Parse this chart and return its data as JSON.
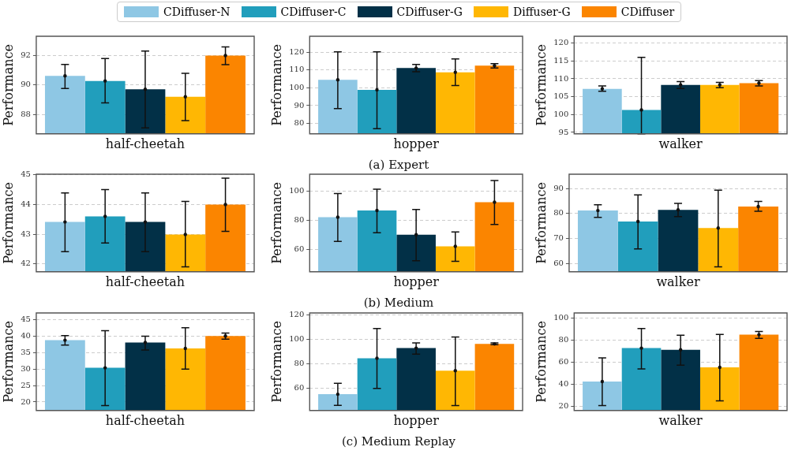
{
  "chart_data": [
    {
      "type": "bar",
      "xlabel": "half-cheetah",
      "ylabel": "Performance",
      "categories": [
        null
      ],
      "ylim": [
        86.7,
        93.3
      ],
      "yticks": [
        88,
        90,
        92
      ],
      "grid": "y",
      "tick_labels": "y",
      "legend": "top",
      "series": [
        {
          "name": "CDiffuser-N",
          "color": "#8ec7e4",
          "values": [
            90.62
          ],
          "errors": [
            [
              89.77,
              91.39
            ]
          ]
        },
        {
          "name": "CDiffuser-C",
          "color": "#219ebc",
          "values": [
            90.28
          ],
          "errors": [
            [
              88.8,
              91.8
            ]
          ]
        },
        {
          "name": "CDiffuser-G",
          "color": "#023047",
          "values": [
            89.72
          ],
          "errors": [
            [
              87.1,
              92.3
            ]
          ]
        },
        {
          "name": "Diffuser-G",
          "color": "#ffb703",
          "values": [
            89.21
          ],
          "errors": [
            [
              87.6,
              90.79
            ]
          ]
        },
        {
          "name": "CDiffuser",
          "color": "#fb8500",
          "values": [
            92.0
          ],
          "errors": [
            [
              91.38,
              92.58
            ]
          ]
        }
      ]
    },
    {
      "type": "bar",
      "xlabel": "hopper",
      "ylabel": "Performance",
      "categories": [
        null
      ],
      "ylim": [
        74.1,
        129
      ],
      "yticks": [
        80,
        90,
        100,
        110,
        120
      ],
      "grid": "y",
      "tick_labels": "y",
      "annotations": [
        "(a) Expert"
      ],
      "series": [
        {
          "color": "#8ec7e4",
          "values": [
            104.5
          ],
          "errors": [
            [
              88.3,
              120.2
            ]
          ]
        },
        {
          "color": "#219ebc",
          "values": [
            98.9
          ],
          "errors": [
            [
              77.0,
              120.2
            ]
          ]
        },
        {
          "color": "#023047",
          "values": [
            111.1
          ],
          "errors": [
            [
              109.0,
              113.1
            ]
          ]
        },
        {
          "color": "#ffb703",
          "values": [
            108.75
          ],
          "errors": [
            [
              101.25,
              116.3
            ]
          ]
        },
        {
          "color": "#fb8500",
          "values": [
            112.5
          ],
          "errors": [
            [
              111.1,
              113.6
            ]
          ]
        }
      ]
    },
    {
      "type": "bar",
      "xlabel": "walker",
      "ylabel": "Performance",
      "categories": [
        null
      ],
      "ylim": [
        94.6,
        121.9
      ],
      "yticks": [
        95,
        100,
        105,
        110,
        115,
        120
      ],
      "grid": "y",
      "tick_labels": "y",
      "series": [
        {
          "color": "#8ec7e4",
          "values": [
            107.2
          ],
          "errors": [
            [
              106.5,
              108.0
            ]
          ]
        },
        {
          "color": "#219ebc",
          "values": [
            101.3
          ],
          "errors": [
            [
              94.6,
              116.0
            ]
          ]
        },
        {
          "color": "#023047",
          "values": [
            108.3
          ],
          "errors": [
            [
              107.3,
              109.2
            ]
          ]
        },
        {
          "color": "#ffb703",
          "values": [
            108.3
          ],
          "errors": [
            [
              107.5,
              109.0
            ]
          ]
        },
        {
          "color": "#fb8500",
          "values": [
            108.8
          ],
          "errors": [
            [
              108.0,
              109.5
            ]
          ]
        }
      ]
    },
    {
      "type": "bar",
      "xlabel": "half-cheetah",
      "ylabel": "Performance",
      "categories": [
        null
      ],
      "ylim": [
        41.73,
        45.02
      ],
      "yticks": [
        42,
        43,
        44,
        45
      ],
      "grid": "y",
      "tick_labels": "y",
      "series": [
        {
          "color": "#8ec7e4",
          "values": [
            43.41
          ],
          "errors": [
            [
              42.41,
              44.39
            ]
          ]
        },
        {
          "color": "#219ebc",
          "values": [
            43.6
          ],
          "errors": [
            [
              42.7,
              44.5
            ]
          ]
        },
        {
          "color": "#023047",
          "values": [
            43.41
          ],
          "errors": [
            [
              42.41,
              44.39
            ]
          ]
        },
        {
          "color": "#ffb703",
          "values": [
            42.99
          ],
          "errors": [
            [
              41.9,
              44.1
            ]
          ]
        },
        {
          "color": "#fb8500",
          "values": [
            44.0
          ],
          "errors": [
            [
              43.09,
              44.89
            ]
          ]
        }
      ]
    },
    {
      "type": "bar",
      "xlabel": "hopper",
      "ylabel": "Performance",
      "categories": [
        null
      ],
      "ylim": [
        44.6,
        111.6
      ],
      "yticks": [
        60,
        80,
        100
      ],
      "grid": "y",
      "tick_labels": "y",
      "annotations": [
        "(b) Medium"
      ],
      "series": [
        {
          "color": "#8ec7e4",
          "values": [
            82.1
          ],
          "errors": [
            [
              65.5,
              98.3
            ]
          ]
        },
        {
          "color": "#219ebc",
          "values": [
            86.7
          ],
          "errors": [
            [
              71.4,
              101.3
            ]
          ]
        },
        {
          "color": "#023047",
          "values": [
            70.1
          ],
          "errors": [
            [
              52.2,
              87.4
            ]
          ]
        },
        {
          "color": "#ffb703",
          "values": [
            62.1
          ],
          "errors": [
            [
              51.8,
              72.0
            ]
          ]
        },
        {
          "color": "#fb8500",
          "values": [
            92.4
          ],
          "errors": [
            [
              77.1,
              107.3
            ]
          ]
        }
      ]
    },
    {
      "type": "bar",
      "xlabel": "walker",
      "ylabel": "Performance",
      "categories": [
        null
      ],
      "ylim": [
        56.6,
        95.8
      ],
      "yticks": [
        60,
        70,
        80,
        90
      ],
      "grid": "y",
      "tick_labels": "y",
      "series": [
        {
          "color": "#8ec7e4",
          "values": [
            81.2
          ],
          "errors": [
            [
              78.5,
              83.5
            ]
          ]
        },
        {
          "color": "#219ebc",
          "values": [
            76.8
          ],
          "errors": [
            [
              65.8,
              87.5
            ]
          ]
        },
        {
          "color": "#023047",
          "values": [
            81.5
          ],
          "errors": [
            [
              78.8,
              84.1
            ]
          ]
        },
        {
          "color": "#ffb703",
          "values": [
            74.2
          ],
          "errors": [
            [
              58.6,
              89.4
            ]
          ]
        },
        {
          "color": "#fb8500",
          "values": [
            82.8
          ],
          "errors": [
            [
              80.9,
              84.9
            ]
          ]
        }
      ]
    },
    {
      "type": "bar",
      "xlabel": "half-cheetah",
      "ylabel": "Performance",
      "categories": [
        null
      ],
      "ylim": [
        17.4,
        47.1
      ],
      "yticks": [
        20,
        25,
        30,
        35,
        40,
        45
      ],
      "grid": "y",
      "tick_labels": "y",
      "series": [
        {
          "color": "#8ec7e4",
          "values": [
            38.8
          ],
          "errors": [
            [
              37.3,
              40.2
            ]
          ]
        },
        {
          "color": "#219ebc",
          "values": [
            30.4
          ],
          "errors": [
            [
              18.9,
              41.7
            ]
          ]
        },
        {
          "color": "#023047",
          "values": [
            38.1
          ],
          "errors": [
            [
              35.8,
              40.0
            ]
          ]
        },
        {
          "color": "#ffb703",
          "values": [
            36.3
          ],
          "errors": [
            [
              30.0,
              42.6
            ]
          ]
        },
        {
          "color": "#fb8500",
          "values": [
            40.1
          ],
          "errors": [
            [
              39.1,
              41.0
            ]
          ]
        }
      ]
    },
    {
      "type": "bar",
      "xlabel": "hopper",
      "ylabel": "Performance",
      "categories": [
        null
      ],
      "ylim": [
        41.6,
        121.8
      ],
      "yticks": [
        60,
        80,
        100,
        120
      ],
      "grid": "y",
      "tick_labels": "y",
      "annotations": [
        "(c) Medium Replay"
      ],
      "series": [
        {
          "color": "#8ec7e4",
          "values": [
            55.0
          ],
          "errors": [
            [
              45.9,
              64.0
            ]
          ]
        },
        {
          "color": "#219ebc",
          "values": [
            84.6
          ],
          "errors": [
            [
              59.8,
              109.0
            ]
          ]
        },
        {
          "color": "#023047",
          "values": [
            92.9
          ],
          "errors": [
            [
              88.0,
              97.2
            ]
          ]
        },
        {
          "color": "#ffb703",
          "values": [
            74.3
          ],
          "errors": [
            [
              45.7,
              102.1
            ]
          ]
        },
        {
          "color": "#fb8500",
          "values": [
            96.3
          ],
          "errors": [
            [
              95.8,
              97.2
            ]
          ]
        }
      ]
    },
    {
      "type": "bar",
      "xlabel": "walker",
      "ylabel": "Performance",
      "categories": [
        null
      ],
      "ylim": [
        16.0,
        104.3
      ],
      "yticks": [
        20,
        40,
        60,
        80,
        100
      ],
      "grid": "y",
      "tick_labels": "y",
      "series": [
        {
          "color": "#8ec7e4",
          "values": [
            42.2
          ],
          "errors": [
            [
              20.5,
              63.7
            ]
          ]
        },
        {
          "color": "#219ebc",
          "values": [
            72.5
          ],
          "errors": [
            [
              53.6,
              90.2
            ]
          ]
        },
        {
          "color": "#023047",
          "values": [
            71.0
          ],
          "errors": [
            [
              57.1,
              84.1
            ]
          ]
        },
        {
          "color": "#ffb703",
          "values": [
            55.1
          ],
          "errors": [
            [
              24.8,
              84.9
            ]
          ]
        },
        {
          "color": "#fb8500",
          "values": [
            84.6
          ],
          "errors": [
            [
              81.3,
              87.6
            ]
          ]
        }
      ]
    }
  ]
}
